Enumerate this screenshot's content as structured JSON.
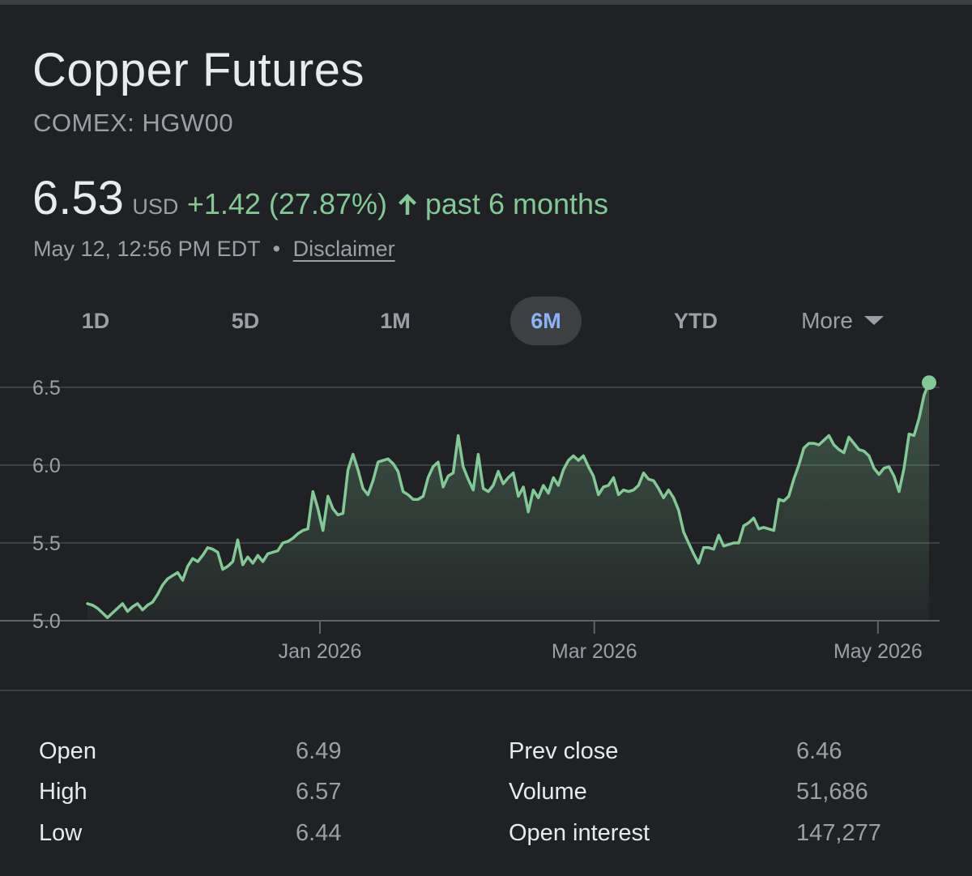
{
  "header": {
    "title": "Copper Futures",
    "ticker": "COMEX: HGW00"
  },
  "quote": {
    "price": "6.53",
    "currency": "USD",
    "change": "+1.42 (27.87%)",
    "direction_icon": "arrow-up-icon",
    "period": "past 6 months",
    "timestamp": "May 12, 12:56 PM EDT",
    "separator": "•",
    "disclaimer": "Disclaimer"
  },
  "tabs": [
    {
      "label": "1D",
      "active": false
    },
    {
      "label": "5D",
      "active": false
    },
    {
      "label": "1M",
      "active": false
    },
    {
      "label": "6M",
      "active": true
    },
    {
      "label": "YTD",
      "active": false
    },
    {
      "label": "More",
      "active": false
    }
  ],
  "colors": {
    "background": "#202124",
    "line": "#81c995",
    "active_tab_text": "#8ab4f8",
    "muted_text": "#9aa0a6",
    "gridline": "#3c4043"
  },
  "chart_data": {
    "type": "area",
    "x_start": "2025-11-12",
    "x_end": "2026-05-12",
    "x_ticks": [
      "Jan 2026",
      "Mar 2026",
      "May 2026"
    ],
    "y_ticks": [
      "6.5",
      "6.0",
      "5.5",
      "5.0"
    ],
    "ylim": [
      5.0,
      6.5
    ],
    "grid": true,
    "last_point_marker": true,
    "series": [
      {
        "values": [
          5.11,
          5.1,
          5.08,
          5.05,
          5.02,
          5.05,
          5.08,
          5.11,
          5.06,
          5.09,
          5.11,
          5.07,
          5.1,
          5.12,
          5.17,
          5.23,
          5.27,
          5.29,
          5.31,
          5.26,
          5.35,
          5.4,
          5.38,
          5.42,
          5.47,
          5.46,
          5.44,
          5.33,
          5.35,
          5.38,
          5.52,
          5.36,
          5.41,
          5.37,
          5.42,
          5.38,
          5.43,
          5.44,
          5.45,
          5.5,
          5.51,
          5.53,
          5.56,
          5.58,
          5.59,
          5.83,
          5.72,
          5.58,
          5.8,
          5.72,
          5.68,
          5.69,
          5.97,
          6.07,
          5.97,
          5.85,
          5.81,
          5.9,
          6.02,
          6.03,
          6.04,
          6.01,
          5.96,
          5.83,
          5.81,
          5.78,
          5.78,
          5.8,
          5.92,
          5.99,
          6.02,
          5.86,
          5.93,
          5.95,
          6.19,
          5.99,
          5.91,
          5.84,
          6.07,
          5.85,
          5.83,
          5.87,
          5.96,
          5.88,
          5.92,
          5.95,
          5.8,
          5.86,
          5.7,
          5.84,
          5.79,
          5.87,
          5.82,
          5.92,
          5.87,
          5.97,
          6.03,
          6.06,
          6.03,
          6.06,
          5.99,
          5.93,
          5.81,
          5.86,
          5.87,
          5.92,
          5.81,
          5.84,
          5.83,
          5.84,
          5.87,
          5.95,
          5.91,
          5.9,
          5.85,
          5.79,
          5.84,
          5.79,
          5.71,
          5.57,
          5.5,
          5.43,
          5.37,
          5.47,
          5.47,
          5.46,
          5.55,
          5.48,
          5.49,
          5.5,
          5.5,
          5.61,
          5.63,
          5.66,
          5.59,
          5.6,
          5.59,
          5.58,
          5.78,
          5.77,
          5.8,
          5.91,
          6.0,
          6.11,
          6.14,
          6.14,
          6.13,
          6.16,
          6.19,
          6.13,
          6.1,
          6.08,
          6.18,
          6.14,
          6.1,
          6.09,
          6.06,
          5.98,
          5.94,
          5.98,
          5.99,
          5.93,
          5.83,
          5.98,
          6.2,
          6.19,
          6.3,
          6.45,
          6.53
        ]
      }
    ]
  },
  "stats": {
    "left": [
      {
        "label": "Open",
        "value": "6.49"
      },
      {
        "label": "High",
        "value": "6.57"
      },
      {
        "label": "Low",
        "value": "6.44"
      }
    ],
    "right": [
      {
        "label": "Prev close",
        "value": "6.46"
      },
      {
        "label": "Volume",
        "value": "51,686"
      },
      {
        "label": "Open interest",
        "value": "147,277"
      }
    ]
  }
}
